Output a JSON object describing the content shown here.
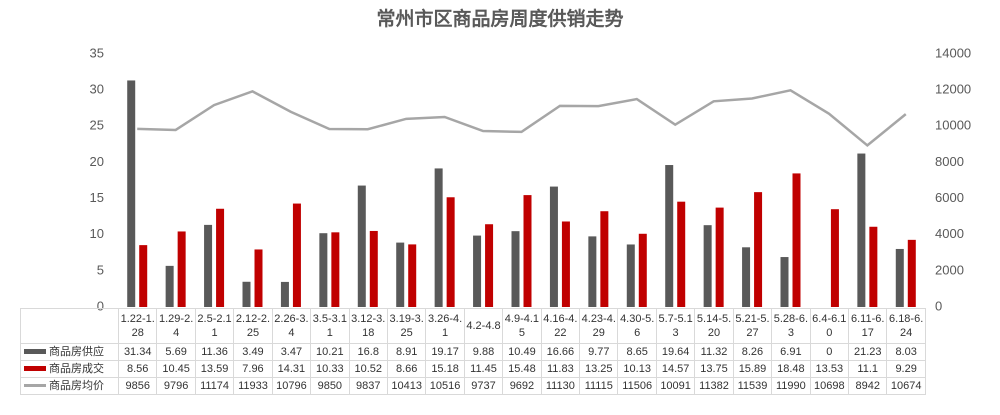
{
  "chart_data": {
    "type": "bar-line-table",
    "title": "常州市区商品房周度供销走势",
    "categories": [
      "1.22-1.28",
      "1.29-2.4",
      "2.5-2.11",
      "2.12-2.25",
      "2.26-3.4",
      "3.5-3.11",
      "3.12-3.18",
      "3.19-3.25",
      "3.26-4.1",
      "4.2-4.8",
      "4.9-4.15",
      "4.16-4.22",
      "4.23-4.29",
      "4.30-5.6",
      "5.7-5.13",
      "5.14-5.20",
      "5.21-5.27",
      "5.28-6.3",
      "6.4-6.10",
      "6.11-6.17",
      "6.18-6.24"
    ],
    "series": [
      {
        "name": "商品房供应",
        "type": "bar",
        "color": "#595959",
        "values": [
          31.34,
          5.69,
          11.36,
          3.49,
          3.47,
          10.21,
          16.8,
          8.91,
          19.17,
          9.88,
          10.49,
          16.66,
          9.77,
          8.65,
          19.64,
          11.32,
          8.26,
          6.91,
          0,
          21.23,
          8.03
        ]
      },
      {
        "name": "商品房成交",
        "type": "bar",
        "color": "#c00000",
        "values": [
          8.56,
          10.45,
          13.59,
          7.96,
          14.31,
          10.33,
          10.52,
          8.66,
          15.18,
          11.45,
          15.48,
          11.83,
          13.25,
          10.13,
          14.57,
          13.75,
          15.89,
          18.48,
          13.53,
          11.1,
          9.29
        ]
      },
      {
        "name": "商品房均价",
        "type": "line",
        "axis": "y2",
        "color": "#a6a6a6",
        "values": [
          9856,
          9796,
          11174,
          11933,
          10796,
          9850,
          9837,
          10413,
          10516,
          9737,
          9692,
          11130,
          11115,
          11506,
          10091,
          11382,
          11539,
          11990,
          10698,
          8942,
          10674
        ]
      }
    ],
    "ylim": [
      0,
      35
    ],
    "yticks": [
      0,
      5,
      10,
      15,
      20,
      25,
      30,
      35
    ],
    "y2lim": [
      0,
      14000
    ],
    "y2ticks": [
      0,
      2000,
      4000,
      6000,
      8000,
      10000,
      12000,
      14000
    ]
  }
}
